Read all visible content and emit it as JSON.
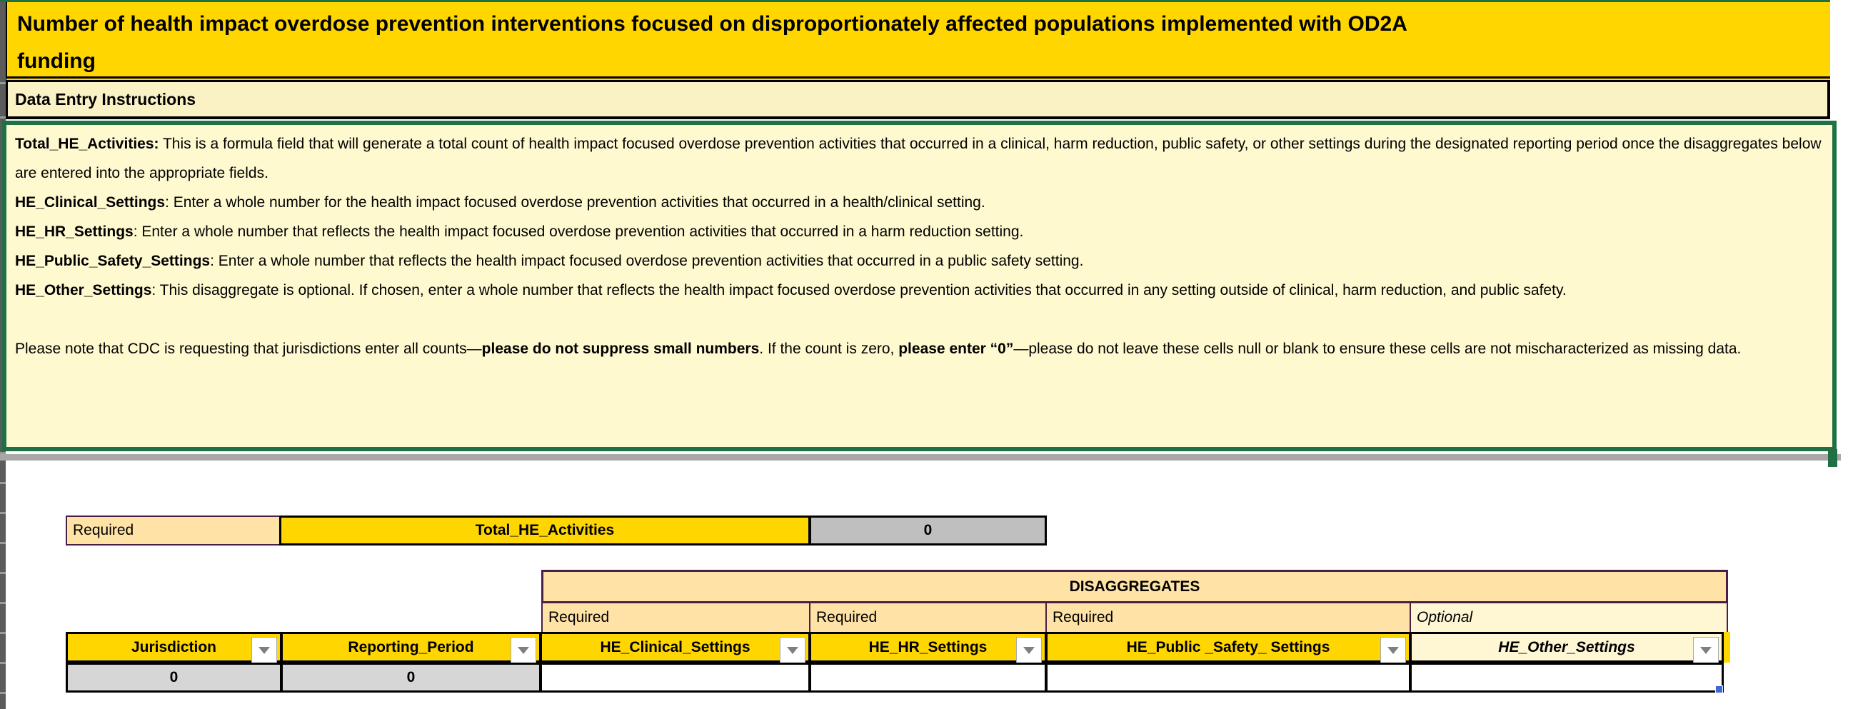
{
  "title_lines": [
    "Number of health impact overdose prevention interventions focused on disproportionately affected populations implemented with OD2A",
    "funding"
  ],
  "instructions_header": {
    "label": "Data Entry Instructions"
  },
  "instructions": {
    "paragraphs": [
      [
        {
          "t": "Total_HE_Activities:",
          "b": true
        },
        {
          "t": " This is a formula field that will generate a total count of health impact focused overdose prevention activities that occurred in a clinical, harm reduction, public safety, or other settings during the designated reporting period once the disaggregates below are entered into the appropriate fields."
        }
      ],
      [
        {
          "t": "HE_Clinical_Settings",
          "b": true
        },
        {
          "t": ": Enter a whole number for the health impact focused overdose prevention activities that occurred in a health/clinical setting."
        }
      ],
      [
        {
          "t": "HE_HR_Settings",
          "b": true
        },
        {
          "t": ": Enter a whole number that reflects the health impact focused overdose prevention activities that occurred in a harm reduction setting."
        }
      ],
      [
        {
          "t": "HE_Public_Safety_Settings",
          "b": true
        },
        {
          "t": ": Enter a whole number that reflects the health impact focused overdose prevention activities that occurred in a public safety setting."
        }
      ],
      [
        {
          "t": "HE_Other_Settings",
          "b": true
        },
        {
          "t": ": This disaggregate is optional. If chosen, enter a whole number that reflects the health impact focused overdose prevention activities that occurred in any setting outside of clinical, harm reduction, and public safety."
        }
      ],
      [],
      [
        {
          "t": "Please note that CDC is requesting that jurisdictions enter all counts—"
        },
        {
          "t": "please do not suppress small numbers",
          "b": true
        },
        {
          "t": ". If the count is zero, "
        },
        {
          "t": "please enter “0”",
          "b": true
        },
        {
          "t": "—please do not leave these cells null or blank to ensure these cells are not mischaracterized as missing data."
        }
      ]
    ]
  },
  "summary_row": {
    "requirement": "Required",
    "field": "Total_HE_Activities",
    "value": "0"
  },
  "disaggregates": {
    "title": "DISAGGREGATES",
    "requirements": [
      "Required",
      "Required",
      "Required",
      "Optional"
    ]
  },
  "table": {
    "columns": [
      {
        "label": "Jurisdiction",
        "value": "0"
      },
      {
        "label": "Reporting_Period",
        "value": "0"
      },
      {
        "label": "HE_Clinical_Settings",
        "value": ""
      },
      {
        "label": "HE_HR_Settings",
        "value": ""
      },
      {
        "label": "HE_Public _Safety_ Settings",
        "value": ""
      },
      {
        "label": "HE_Other_Settings",
        "value": ""
      }
    ]
  },
  "colors": {
    "title_yellow": "#FFD600",
    "band_cream": "#FAF1C4",
    "instruction_cream": "#FFF9D0",
    "green_border": "#1F7145",
    "tan_header": "#FFE3A6",
    "pale_optional": "#FFF6D4",
    "purple_border": "#4A1F45",
    "gray_value": "#BFBFBF",
    "gray_row": "#D6D6D6",
    "fill_handle_blue": "#4067D8"
  }
}
